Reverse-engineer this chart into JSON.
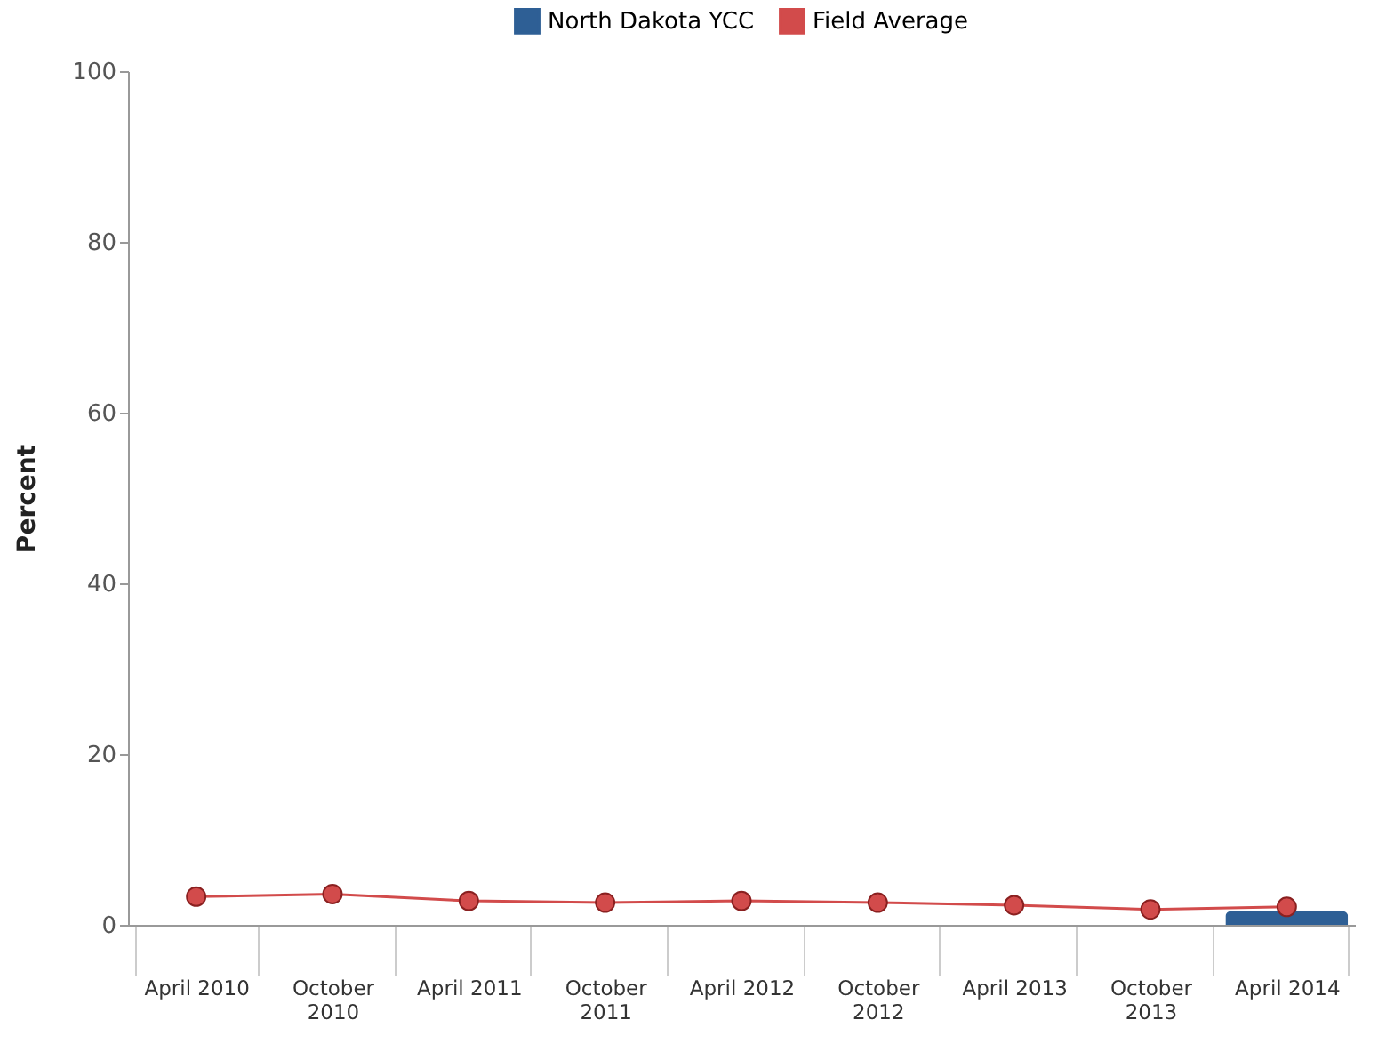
{
  "chart_data": {
    "type": "bar",
    "ylabel": "Percent",
    "categories": [
      "April 2010",
      "October 2010",
      "April 2011",
      "October 2011",
      "April 2012",
      "October 2012",
      "April 2013",
      "October 2013",
      "April 2014"
    ],
    "series": [
      {
        "name": "North Dakota YCC",
        "color": "#2e5f95",
        "values": [
          null,
          null,
          null,
          null,
          null,
          null,
          null,
          null,
          1.6
        ]
      },
      {
        "name": "Field Average",
        "type": "line",
        "color": "#d24b4b",
        "values": [
          3.3,
          3.6,
          2.8,
          2.6,
          2.8,
          2.6,
          2.3,
          1.8,
          2.1
        ]
      }
    ],
    "ylim": [
      0,
      100
    ],
    "yticks": [
      0,
      20,
      40,
      60,
      80,
      100
    ],
    "grid": false,
    "legend": "top",
    "marker": "circle"
  }
}
